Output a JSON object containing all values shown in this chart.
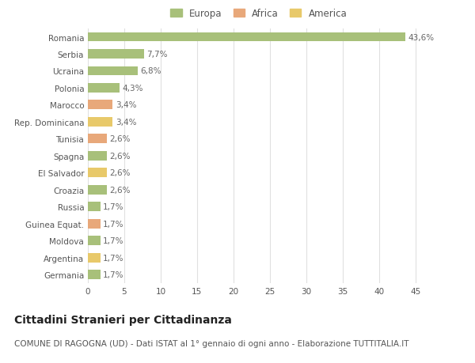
{
  "categories": [
    "Germania",
    "Argentina",
    "Moldova",
    "Guinea Equat.",
    "Russia",
    "Croazia",
    "El Salvador",
    "Spagna",
    "Tunisia",
    "Rep. Dominicana",
    "Marocco",
    "Polonia",
    "Ucraina",
    "Serbia",
    "Romania"
  ],
  "values": [
    1.7,
    1.7,
    1.7,
    1.7,
    1.7,
    2.6,
    2.6,
    2.6,
    2.6,
    3.4,
    3.4,
    4.3,
    6.8,
    7.7,
    43.6
  ],
  "colors": [
    "#a8c07a",
    "#e8c96a",
    "#a8c07a",
    "#e8a87a",
    "#a8c07a",
    "#a8c07a",
    "#e8c96a",
    "#a8c07a",
    "#e8a87a",
    "#e8c96a",
    "#e8a87a",
    "#a8c07a",
    "#a8c07a",
    "#a8c07a",
    "#a8c07a"
  ],
  "labels": [
    "1,7%",
    "1,7%",
    "1,7%",
    "1,7%",
    "1,7%",
    "2,6%",
    "2,6%",
    "2,6%",
    "2,6%",
    "3,4%",
    "3,4%",
    "4,3%",
    "6,8%",
    "7,7%",
    "43,6%"
  ],
  "legend_labels": [
    "Europa",
    "Africa",
    "America"
  ],
  "legend_colors": [
    "#a8c07a",
    "#e8a87a",
    "#e8c96a"
  ],
  "title": "Cittadini Stranieri per Cittadinanza",
  "subtitle": "COMUNE DI RAGOGNA (UD) - Dati ISTAT al 1° gennaio di ogni anno - Elaborazione TUTTITALIA.IT",
  "xlim": [
    0,
    47
  ],
  "xticks": [
    0,
    5,
    10,
    15,
    20,
    25,
    30,
    35,
    40,
    45
  ],
  "background_color": "#ffffff",
  "grid_color": "#e0e0e0",
  "bar_height": 0.55,
  "title_fontsize": 10,
  "subtitle_fontsize": 7.5,
  "label_fontsize": 7.5,
  "tick_fontsize": 7.5,
  "legend_fontsize": 8.5
}
